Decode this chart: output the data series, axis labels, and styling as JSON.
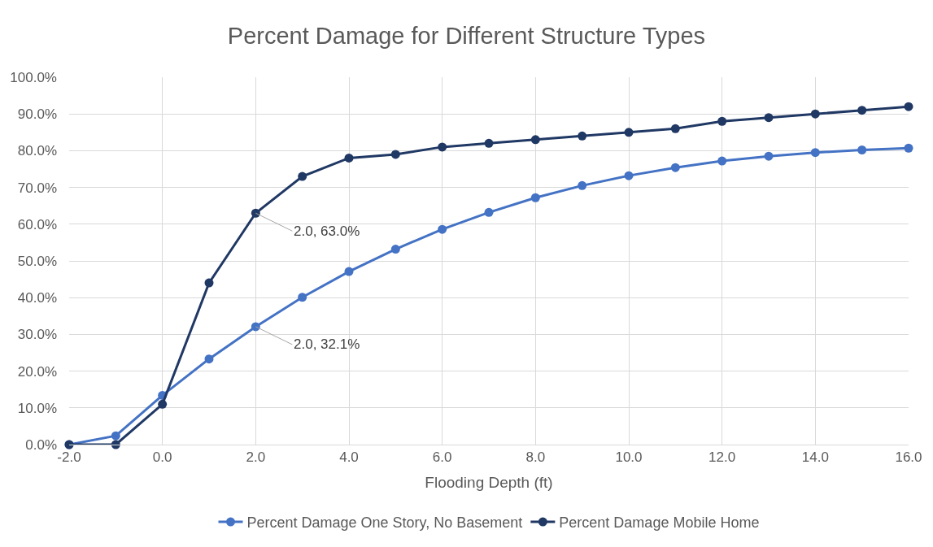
{
  "chart_data": {
    "type": "line",
    "title": "Percent Damage for Different Structure Types",
    "xlabel": "Flooding Depth (ft)",
    "x": [
      -2,
      -1,
      0,
      1,
      2,
      3,
      4,
      5,
      6,
      7,
      8,
      9,
      10,
      11,
      12,
      13,
      14,
      15,
      16
    ],
    "series": [
      {
        "name": "Percent Damage One Story, No Basement",
        "color": "#4472c4",
        "values": [
          0,
          2.4,
          13.4,
          23.3,
          32.1,
          40.1,
          47.1,
          53.2,
          58.6,
          63.2,
          67.2,
          70.5,
          73.2,
          75.4,
          77.2,
          78.5,
          79.5,
          80.2,
          80.7
        ]
      },
      {
        "name": "Percent Damage Mobile Home",
        "color": "#203864",
        "values": [
          0,
          0,
          11,
          44,
          63,
          73,
          78,
          79,
          81,
          82,
          83,
          84,
          85,
          86,
          88,
          89,
          90,
          91,
          92
        ]
      }
    ],
    "annotations": [
      {
        "text": "2.0, 63.0%",
        "x": 2,
        "y": 63
      },
      {
        "text": "2.0, 32.1%",
        "x": 2,
        "y": 32.1
      }
    ],
    "xlim": [
      -2,
      16
    ],
    "xticks": [
      {
        "value": -2,
        "label": "-2.0"
      },
      {
        "value": 0,
        "label": "0.0"
      },
      {
        "value": 2,
        "label": "2.0"
      },
      {
        "value": 4,
        "label": "4.0"
      },
      {
        "value": 6,
        "label": "6.0"
      },
      {
        "value": 8,
        "label": "8.0"
      },
      {
        "value": 10,
        "label": "10.0"
      },
      {
        "value": 12,
        "label": "12.0"
      },
      {
        "value": 14,
        "label": "14.0"
      },
      {
        "value": 16,
        "label": "16.0"
      }
    ],
    "ylim": [
      0,
      100
    ],
    "yticks": [
      {
        "value": 0,
        "label": "0.0%"
      },
      {
        "value": 10,
        "label": "10.0%"
      },
      {
        "value": 20,
        "label": "20.0%"
      },
      {
        "value": 30,
        "label": "30.0%"
      },
      {
        "value": 40,
        "label": "40.0%"
      },
      {
        "value": 50,
        "label": "50.0%"
      },
      {
        "value": 60,
        "label": "60.0%"
      },
      {
        "value": 70,
        "label": "70.0%"
      },
      {
        "value": 80,
        "label": "80.0%"
      },
      {
        "value": 90,
        "label": "90.0%"
      },
      {
        "value": 100,
        "label": "100.0%"
      }
    ],
    "grid": true,
    "legend": "bottom",
    "marker": "circle",
    "line_style": "solid"
  }
}
